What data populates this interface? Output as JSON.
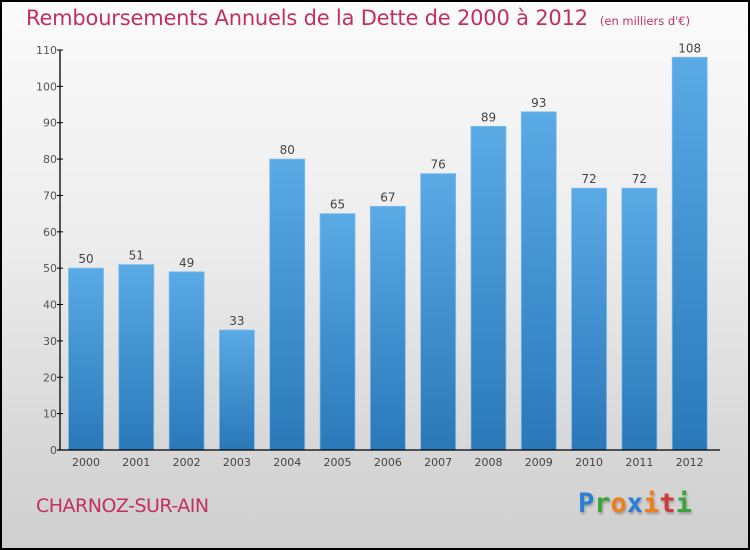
{
  "header": {
    "title": "Remboursements Annuels de la Dette de 2000 à 2012",
    "unit": "(en milliers d'€)"
  },
  "footer": {
    "commune": "CHARNOZ-SUR-AIN",
    "logo": {
      "letters": [
        {
          "char": "P",
          "color": "#2a7fd4"
        },
        {
          "char": "r",
          "color": "#3aa63a"
        },
        {
          "char": "o",
          "color": "#f07f1a"
        },
        {
          "char": "x",
          "color": "#2a7fd4"
        },
        {
          "char": "i",
          "color": "#f07f1a"
        },
        {
          "char": "t",
          "color": "#d23a3a"
        },
        {
          "char": "i",
          "color": "#3aa63a"
        }
      ]
    }
  },
  "colors": {
    "title": "#c2305f",
    "bar_top": "#5aaae6",
    "bar_bottom": "#2a78b8"
  },
  "chart_data": {
    "type": "bar",
    "title": "Remboursements Annuels de la Dette de 2000 à 2012",
    "subtitle": "(en milliers d'€)",
    "xlabel": "",
    "ylabel": "",
    "categories": [
      "2000",
      "2001",
      "2002",
      "2003",
      "2004",
      "2005",
      "2006",
      "2007",
      "2008",
      "2009",
      "2010",
      "2011",
      "2012"
    ],
    "values": [
      50,
      51,
      49,
      33,
      80,
      65,
      67,
      76,
      89,
      93,
      72,
      72,
      108
    ],
    "ylim": [
      0,
      110
    ],
    "yticks": [
      0,
      10,
      20,
      30,
      40,
      50,
      60,
      70,
      80,
      90,
      100,
      110
    ],
    "grid": false,
    "legend": "none",
    "data_labels": true
  }
}
